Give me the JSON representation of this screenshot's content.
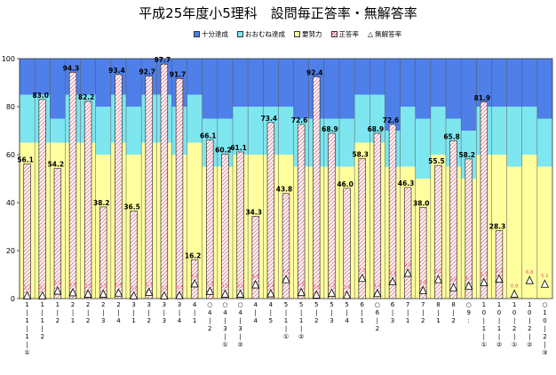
{
  "chart_data": {
    "type": "bar",
    "title": "平成25年度小5理科　設問毎正答率・無解答率",
    "ylim": [
      0,
      100
    ],
    "yticks": [
      "0",
      "20",
      "40",
      "60",
      "80",
      "100"
    ],
    "grid": false,
    "legend_position": "top-center",
    "categories": [
      "1-1-1-①",
      "1-1-2",
      "1-2",
      "2-1",
      "2-2",
      "2-3",
      "2-4",
      "3-1",
      "3-2",
      "3-3",
      "3-4",
      "4-1",
      "4-2",
      "4-3-①",
      "4-3-②",
      "4-4",
      "4-5",
      "5-1-①",
      "5-1-②",
      "5-2",
      "5-3",
      "5-4",
      "6-1",
      "6-2",
      "6-3",
      "7-1",
      "7-2",
      "8-1",
      "8-2",
      "9",
      "10-1-①",
      "10-1-②",
      "10-2-①",
      "10-2-②",
      "10-2-③"
    ],
    "category_labels": [
      "1\n|\n1\n|\n1\n|\n①",
      "1\n|\n1\n|\n2",
      "1\n|\n2",
      "2\n|\n1",
      "2\n|\n2",
      "2\n|\n3",
      "2\n|\n4",
      "3\n|\n1",
      "3\n|\n2",
      "3\n|\n3",
      "3\n|\n4",
      "4\n|\n1",
      "○\n4\n|\n2",
      "○\n4\n|\n3\n|\n①",
      "○\n4\n|\n3\n|\n②",
      "4\n|\n4",
      "4\n|\n5",
      "5\n|\n1\n|\n①",
      "5\n|\n1\n|\n②",
      "5\n|\n2",
      "5\n|\n3",
      "5\n|\n4",
      "6\n|\n1",
      "○\n6\n|\n2",
      "6\n|\n3",
      "7\n|\n1",
      "7\n|\n2",
      "8\n|\n1",
      "8\n|\n2",
      "○\n9\n:",
      "1\n0\n|\n1\n|\n①",
      "1\n0\n|\n1\n|\n②",
      "1\n0\n|\n2\n|\n①",
      "1\n0\n|\n2\n|\n②",
      "○\n1\n0\n|\n2\n|\n③"
    ],
    "series": [
      {
        "name": "十分達成",
        "color": "#4f7fe8",
        "values": [
          15,
          15,
          25,
          15,
          15,
          20,
          15,
          20,
          15,
          15,
          20,
          15,
          25,
          25,
          20,
          20,
          20,
          20,
          25,
          25,
          25,
          25,
          15,
          15,
          30,
          20,
          25,
          20,
          25,
          30,
          20,
          20,
          20,
          20,
          25
        ]
      },
      {
        "name": "おおむね達成",
        "color": "#7ee6ef",
        "values": [
          20,
          20,
          10,
          20,
          20,
          20,
          20,
          20,
          20,
          20,
          20,
          20,
          20,
          20,
          20,
          20,
          20,
          20,
          20,
          20,
          20,
          20,
          20,
          20,
          15,
          25,
          25,
          20,
          20,
          20,
          20,
          20,
          25,
          20,
          20
        ]
      },
      {
        "name": "要努力",
        "color": "#ffff9e",
        "values": [
          65,
          65,
          65,
          65,
          65,
          60,
          65,
          60,
          65,
          65,
          60,
          65,
          55,
          55,
          60,
          60,
          60,
          60,
          55,
          55,
          55,
          55,
          65,
          65,
          55,
          55,
          50,
          60,
          55,
          50,
          60,
          60,
          55,
          60,
          55
        ]
      },
      {
        "name": "正答率",
        "color": "#e0506a",
        "values": [
          56.1,
          83.0,
          54.2,
          94.3,
          82.2,
          38.2,
          93.4,
          36.5,
          92.7,
          97.7,
          91.7,
          16.2,
          66.1,
          60.2,
          61.1,
          34.3,
          73.4,
          43.8,
          72.6,
          92.4,
          68.9,
          46.0,
          58.3,
          68.9,
          72.6,
          46.3,
          38.0,
          55.5,
          65.8,
          58.2,
          81.9,
          28.3,
          null,
          null,
          null
        ]
      },
      {
        "name": "無解答率",
        "color": "#000000",
        "values": [
          0.2,
          0.2,
          2.2,
          1.5,
          0.9,
          0.9,
          1.4,
          0.2,
          1.7,
          0.2,
          0.3,
          5.2,
          2.1,
          0.9,
          0.9,
          4.8,
          1.1,
          7.0,
          1.6,
          0.6,
          1.3,
          0.4,
          7.5,
          1.2,
          6.1,
          9.6,
          2.4,
          7.0,
          3.6,
          4.3,
          5.7,
          7.2,
          0.9,
          6.6,
          5.1
        ]
      }
    ],
    "correct_labels": [
      "56.1",
      "83.0",
      "54.2",
      "94.3",
      "82.2",
      "38.2",
      "93.4",
      "36.5",
      "92.7",
      "97.7",
      "91.7",
      "16.2",
      "66.1",
      "60.2",
      "61.1",
      "34.3",
      "73.4",
      "43.8",
      "72.6",
      "92.4",
      "68.9",
      "46.0",
      "58.3",
      "68.9",
      "72.6",
      "46.3",
      "38.0",
      "55.5",
      "65.8",
      "58.2",
      "81.9",
      "28.3",
      "",
      "",
      ""
    ],
    "noanswer_labels": [
      "0.2",
      "0.2",
      "2.2",
      "1.5",
      "0.9",
      "0.9",
      "1.4",
      "0.2",
      "1.7",
      "0.2",
      "0.3",
      "5.2",
      "2.1",
      "0.9",
      "0.9",
      "4.8",
      "1.1",
      "7.0",
      "1.6",
      "0.6",
      "1.3",
      "0.4",
      "7.5",
      "1.2",
      "6.1",
      "9.6",
      "2.4",
      "7.0",
      "3.6",
      "4.3",
      "5.7",
      "7.2",
      "0.9",
      "6.6",
      "5.1"
    ]
  }
}
